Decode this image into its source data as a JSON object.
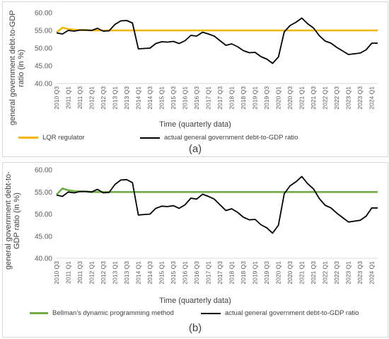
{
  "chart_data": [
    {
      "type": "line",
      "panel_label": "(a)",
      "xlabel": "Time (quarterly data)",
      "ylabel": "general government debt-to-GDP ratio  (in %)",
      "ylim": [
        40,
        60
      ],
      "yticks": [
        "40.00",
        "45.00",
        "50.00",
        "55.00",
        "60.00"
      ],
      "grid": "none",
      "legend_position": "bottom",
      "categories": [
        "2010 Q3",
        "",
        "2011 Q1",
        "",
        "2011 Q3",
        "",
        "2012 Q1",
        "",
        "2012 Q3",
        "",
        "2013 Q1",
        "",
        "2013 Q3",
        "",
        "2014 Q1",
        "",
        "2014 Q3",
        "",
        "2015 Q1",
        "",
        "2015 Q3",
        "",
        "2016 Q1",
        "",
        "2016 Q3",
        "",
        "2017 Q1",
        "",
        "2017 Q3",
        "",
        "2018 Q1",
        "",
        "2018 Q3",
        "",
        "2019 Q1",
        "",
        "2019 Q3",
        "",
        "2020 Q1",
        "",
        "2020 Q3",
        "",
        "2021 Q1",
        "",
        "2021 Q3",
        "",
        "2022 Q1",
        "",
        "2022 Q3",
        "",
        "2023 Q1",
        "",
        "2023 Q3",
        "",
        "2024 Q1",
        ""
      ],
      "series": [
        {
          "name": "LQR regulator",
          "color": "#f2b705",
          "values": [
            54.4,
            55.8,
            55.4,
            55.2,
            55.1,
            55.1,
            55.0,
            55.0,
            55.0,
            55.0,
            55.0,
            55.0,
            55.0,
            55.0,
            55.0,
            55.0,
            55.0,
            55.0,
            55.0,
            55.0,
            55.0,
            55.0,
            55.0,
            55.0,
            55.0,
            55.0,
            55.0,
            55.0,
            55.0,
            55.0,
            55.0,
            55.0,
            55.0,
            55.0,
            55.0,
            55.0,
            55.0,
            55.0,
            55.0,
            55.0,
            55.0,
            55.0,
            55.0,
            55.0,
            55.0,
            55.0,
            55.0,
            55.0,
            55.0,
            55.0,
            55.0,
            55.0,
            55.0,
            55.0,
            55.0,
            55.0
          ]
        },
        {
          "name": "actual general government debt-to-GDP ratio",
          "color": "#000000",
          "values": [
            54.3,
            54.0,
            55.0,
            54.8,
            55.1,
            55.1,
            55.0,
            55.6,
            54.8,
            54.9,
            56.7,
            57.7,
            57.8,
            57.1,
            49.8,
            49.9,
            50.0,
            51.3,
            51.8,
            51.7,
            51.9,
            51.3,
            52.1,
            53.6,
            53.4,
            54.5,
            54.0,
            53.4,
            52.1,
            50.8,
            51.2,
            50.4,
            49.3,
            48.7,
            48.8,
            47.6,
            46.9,
            45.7,
            47.5,
            54.6,
            56.4,
            57.3,
            58.5,
            56.9,
            55.7,
            53.5,
            52.0,
            51.4,
            50.2,
            49.2,
            48.2,
            48.4,
            48.6,
            49.5,
            51.4,
            51.4
          ]
        }
      ]
    },
    {
      "type": "line",
      "panel_label": "(b)",
      "xlabel": "Time (quarterly data)",
      "ylabel": "general government debt-to-GDP ratio  (in %)",
      "ylim": [
        40,
        60
      ],
      "yticks": [
        "40.00",
        "45.00",
        "50.00",
        "55.00",
        "60.00"
      ],
      "grid": "none",
      "legend_position": "bottom",
      "categories": [
        "2010 Q3",
        "",
        "2011 Q1",
        "",
        "2011 Q3",
        "",
        "2012 Q1",
        "",
        "2012 Q3",
        "",
        "2013 Q1",
        "",
        "2013 Q3",
        "",
        "2014 Q1",
        "",
        "2014 Q3",
        "",
        "2015 Q1",
        "",
        "2015 Q3",
        "",
        "2016 Q1",
        "",
        "2016 Q3",
        "",
        "2017 Q1",
        "",
        "2017 Q3",
        "",
        "2018 Q1",
        "",
        "2018 Q3",
        "",
        "2019 Q1",
        "",
        "2019 Q3",
        "",
        "2020 Q1",
        "",
        "2020 Q3",
        "",
        "2021 Q1",
        "",
        "2021 Q3",
        "",
        "2022 Q1",
        "",
        "2022 Q3",
        "",
        "2023 Q1",
        "",
        "2023 Q3",
        "",
        "2024 Q1",
        ""
      ],
      "series": [
        {
          "name": "Bellman's dynamic programming method",
          "color": "#70ad47",
          "values": [
            54.4,
            55.8,
            55.4,
            55.2,
            55.1,
            55.1,
            55.0,
            55.0,
            55.0,
            55.0,
            55.0,
            55.0,
            55.0,
            55.0,
            55.0,
            55.0,
            55.0,
            55.0,
            55.0,
            55.0,
            55.0,
            55.0,
            55.0,
            55.0,
            55.0,
            55.0,
            55.0,
            55.0,
            55.0,
            55.0,
            55.0,
            55.0,
            55.0,
            55.0,
            55.0,
            55.0,
            55.0,
            55.0,
            55.0,
            55.0,
            55.0,
            55.0,
            55.0,
            55.0,
            55.0,
            55.0,
            55.0,
            55.0,
            55.0,
            55.0,
            55.0,
            55.0,
            55.0,
            55.0,
            55.0,
            55.0
          ]
        },
        {
          "name": "actual general government debt-to-GDP ratio",
          "color": "#000000",
          "values": [
            54.3,
            54.0,
            55.0,
            54.8,
            55.1,
            55.1,
            55.0,
            55.6,
            54.8,
            54.9,
            56.7,
            57.7,
            57.8,
            57.1,
            49.8,
            49.9,
            50.0,
            51.3,
            51.8,
            51.7,
            51.9,
            51.3,
            52.1,
            53.6,
            53.4,
            54.5,
            54.0,
            53.4,
            52.1,
            50.8,
            51.2,
            50.4,
            49.3,
            48.7,
            48.8,
            47.6,
            46.9,
            45.7,
            47.5,
            54.6,
            56.4,
            57.3,
            58.5,
            56.9,
            55.7,
            53.5,
            52.0,
            51.4,
            50.2,
            49.2,
            48.2,
            48.4,
            48.6,
            49.5,
            51.4,
            51.4
          ]
        }
      ]
    }
  ]
}
